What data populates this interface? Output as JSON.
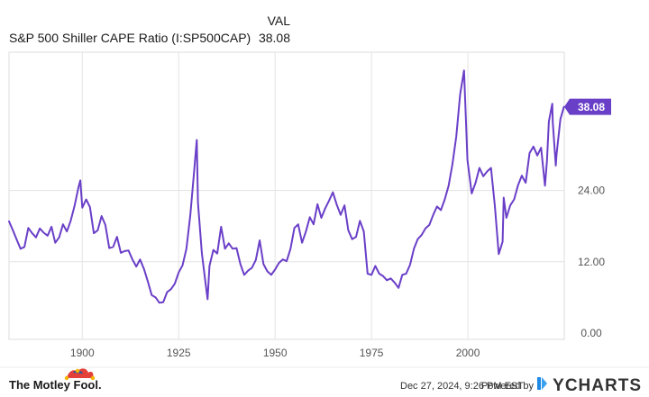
{
  "header": {
    "col_label": "VAL",
    "series_label": "S&P 500 Shiller CAPE Ratio (I:SP500CAP)",
    "series_value": "38.08"
  },
  "colors": {
    "line": "#6A3FC8",
    "grid": "#e3e3e3",
    "badge": "#6A3FC8"
  },
  "chart_data": {
    "type": "line",
    "title": "",
    "xlabel": "",
    "ylabel": "",
    "xlim": [
      1881,
      2025
    ],
    "ylim": [
      0,
      46
    ],
    "x_ticks": [
      1900,
      1925,
      1950,
      1975,
      2000
    ],
    "x_tick_labels": [
      "1900",
      "1925",
      "1950",
      "1975",
      "2000"
    ],
    "y_ticks": [
      0,
      12,
      24
    ],
    "y_tick_labels": [
      "0.00",
      "12.00",
      "24.00"
    ],
    "grid": true,
    "last_value_label": "38.08",
    "series": [
      {
        "x": [
          1881,
          1882,
          1883,
          1884,
          1885,
          1886,
          1887,
          1888,
          1889,
          1890,
          1891,
          1892,
          1893,
          1894,
          1895,
          1896,
          1897,
          1898,
          1899,
          1899.5,
          1900,
          1901,
          1902,
          1903,
          1904,
          1905,
          1906,
          1907,
          1908,
          1909,
          1910,
          1911,
          1912,
          1913,
          1914,
          1915,
          1916,
          1917,
          1918,
          1919,
          1920,
          1921,
          1922,
          1923,
          1924,
          1925,
          1926,
          1927,
          1928,
          1929,
          1929.7,
          1930,
          1931,
          1932,
          1932.5,
          1933,
          1934,
          1935,
          1936,
          1937,
          1938,
          1939,
          1940,
          1941,
          1942,
          1943,
          1944,
          1945,
          1946,
          1947,
          1948,
          1949,
          1950,
          1951,
          1952,
          1953,
          1954,
          1955,
          1956,
          1957,
          1958,
          1959,
          1960,
          1961,
          1962,
          1963,
          1964,
          1965,
          1966,
          1967,
          1968,
          1969,
          1970,
          1971,
          1972,
          1973,
          1974,
          1975,
          1976,
          1977,
          1978,
          1979,
          1980,
          1981,
          1982,
          1983,
          1984,
          1985,
          1986,
          1987,
          1988,
          1989,
          1990,
          1991,
          1992,
          1993,
          1994,
          1995,
          1996,
          1997,
          1998,
          1999,
          1999.9,
          2001,
          2002,
          2003,
          2004,
          2005,
          2006,
          2007,
          2008,
          2009,
          2009.3,
          2010,
          2011,
          2012,
          2013,
          2014,
          2015,
          2016,
          2017,
          2018,
          2019,
          2020,
          2020.5,
          2021,
          2021.9,
          2022,
          2022.8,
          2023,
          2024,
          2024.9
        ],
        "y": [
          18.8,
          17.3,
          15.7,
          14.2,
          14.5,
          17.7,
          16.8,
          16.1,
          17.6,
          16.9,
          16.4,
          17.9,
          15.2,
          16.1,
          18.3,
          17.1,
          18.9,
          21.4,
          24.5,
          25.7,
          21.1,
          22.5,
          21.2,
          16.8,
          17.3,
          19.7,
          18.2,
          14.3,
          14.5,
          16.2,
          13.5,
          13.8,
          13.9,
          12.4,
          11.2,
          12.4,
          10.8,
          8.7,
          6.4,
          6.0,
          5.1,
          5.2,
          6.9,
          7.4,
          8.3,
          10.2,
          11.4,
          14.2,
          19.8,
          27.1,
          32.5,
          22.0,
          13.5,
          8.2,
          5.7,
          11.3,
          14.0,
          13.4,
          17.9,
          14.2,
          15.1,
          14.2,
          14.3,
          11.6,
          9.8,
          10.5,
          11.0,
          12.3,
          15.6,
          11.6,
          10.4,
          9.8,
          10.7,
          11.8,
          12.4,
          12.1,
          14.2,
          17.7,
          18.3,
          15.2,
          17.1,
          19.5,
          18.3,
          21.7,
          19.4,
          21.0,
          22.3,
          23.7,
          21.6,
          19.9,
          21.5,
          17.3,
          15.8,
          16.2,
          18.9,
          17.1,
          10.0,
          9.8,
          11.3,
          10.0,
          9.6,
          8.9,
          9.2,
          8.5,
          7.6,
          9.8,
          10.0,
          11.5,
          14.2,
          15.8,
          16.5,
          17.6,
          18.2,
          19.9,
          21.3,
          20.7,
          22.5,
          24.8,
          28.4,
          33.1,
          40.2,
          44.2,
          29.1,
          23.5,
          25.3,
          27.8,
          26.4,
          27.2,
          27.8,
          21.4,
          13.3,
          15.4,
          22.8,
          19.4,
          21.5,
          22.5,
          24.9,
          26.5,
          25.3,
          30.3,
          31.4,
          29.9,
          31.2,
          24.8,
          29.0,
          35.6,
          38.6,
          35.6,
          28.2,
          30.0,
          36.0,
          38.08
        ]
      }
    ]
  },
  "footer": {
    "brand_name": "The Motley Fool.",
    "timestamp": "Dec 27, 2024, 9:26 PM EST",
    "powered_by": "Powered by",
    "provider_name": "YCHARTS"
  }
}
